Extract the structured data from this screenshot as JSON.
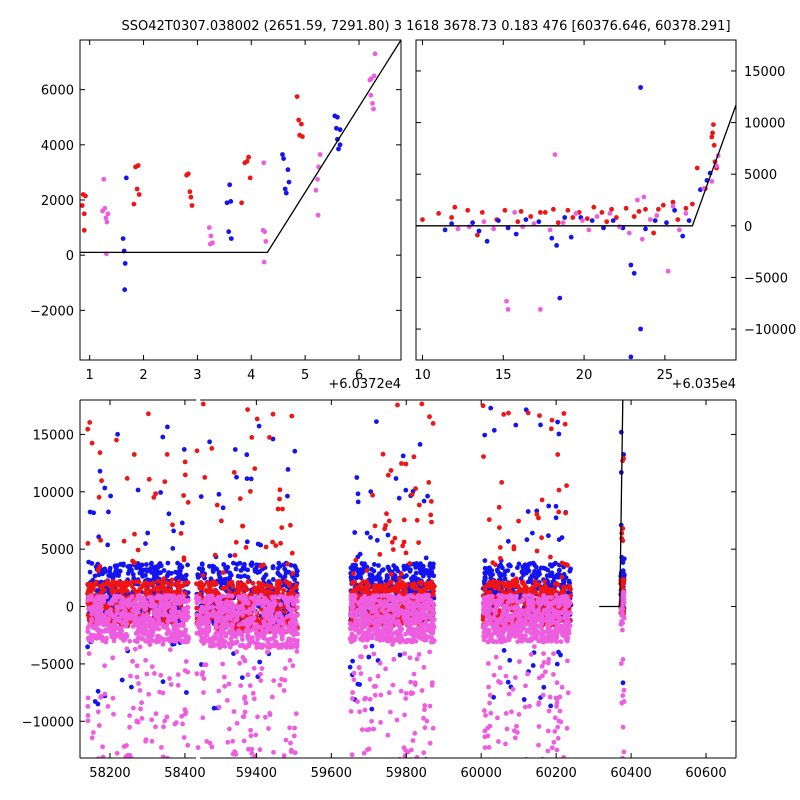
{
  "title": "SSO42T0307.038002 (2651.59, 7291.80)    3 1618 3678.73 0.183 476 [60376.646, 60378.291]",
  "colors": {
    "blue": "#1414f0",
    "red": "#f01414",
    "magenta": "#ee5ce0",
    "model": "#000000"
  },
  "chart_data": [
    {
      "id": "top-left",
      "type": "scatter",
      "x_offset_label": "+6.0372e4",
      "xlim": [
        0.82,
        6.78
      ],
      "ylim": [
        -3800,
        7800
      ],
      "xticks": [
        1,
        2,
        3,
        4,
        5,
        6
      ],
      "xtick_labels": [
        "1",
        "2",
        "3",
        "4",
        "5",
        "6"
      ],
      "yticks": [
        -2000,
        0,
        2000,
        4000,
        6000
      ],
      "ytick_labels": [
        "−2000",
        "0",
        "2000",
        "4000",
        "6000"
      ],
      "y_axis_side": "left",
      "model_line": [
        [
          0.82,
          100
        ],
        [
          4.3,
          100
        ],
        [
          6.78,
          7800
        ]
      ],
      "series": [
        {
          "color": "red",
          "points": [
            [
              0.86,
              1800
            ],
            [
              0.88,
              2200
            ],
            [
              0.9,
              1500
            ],
            [
              0.92,
              2150
            ],
            [
              0.9,
              900
            ],
            [
              1.82,
              1850
            ],
            [
              1.85,
              3200
            ],
            [
              1.88,
              2400
            ],
            [
              1.9,
              3250
            ],
            [
              1.92,
              2200
            ],
            [
              2.8,
              2900
            ],
            [
              2.83,
              2950
            ],
            [
              2.86,
              2300
            ],
            [
              2.88,
              2100
            ],
            [
              2.9,
              1800
            ],
            [
              3.82,
              1900
            ],
            [
              3.88,
              3350
            ],
            [
              3.92,
              3400
            ],
            [
              3.95,
              3550
            ],
            [
              3.98,
              2800
            ],
            [
              4.85,
              5750
            ],
            [
              4.88,
              4900
            ],
            [
              4.9,
              4350
            ],
            [
              4.93,
              4750
            ],
            [
              4.95,
              4300
            ]
          ]
        },
        {
          "color": "blue",
          "points": [
            [
              1.62,
              600
            ],
            [
              1.64,
              150
            ],
            [
              1.66,
              -300
            ],
            [
              1.65,
              -1250
            ],
            [
              1.68,
              2800
            ],
            [
              3.55,
              1900
            ],
            [
              3.6,
              2550
            ],
            [
              3.62,
              1950
            ],
            [
              3.58,
              850
            ],
            [
              3.63,
              600
            ],
            [
              4.58,
              3650
            ],
            [
              4.6,
              3500
            ],
            [
              4.63,
              2400
            ],
            [
              4.65,
              2250
            ],
            [
              4.68,
              3100
            ],
            [
              4.7,
              2650
            ],
            [
              5.55,
              5050
            ],
            [
              5.58,
              4600
            ],
            [
              5.6,
              4200
            ],
            [
              5.62,
              3850
            ],
            [
              5.65,
              4550
            ],
            [
              5.6,
              5000
            ],
            [
              5.65,
              4000
            ]
          ]
        },
        {
          "color": "magenta",
          "points": [
            [
              1.24,
              1600
            ],
            [
              1.26,
              2750
            ],
            [
              1.28,
              1700
            ],
            [
              1.3,
              1350
            ],
            [
              1.32,
              1200
            ],
            [
              1.34,
              1500
            ],
            [
              1.31,
              50
            ],
            [
              3.22,
              1000
            ],
            [
              3.25,
              700
            ],
            [
              3.28,
              450
            ],
            [
              3.24,
              400
            ],
            [
              4.22,
              900
            ],
            [
              4.25,
              850
            ],
            [
              4.27,
              500
            ],
            [
              4.24,
              -250
            ],
            [
              4.23,
              3350
            ],
            [
              5.2,
              2350
            ],
            [
              5.23,
              2750
            ],
            [
              5.25,
              3200
            ],
            [
              5.28,
              3650
            ],
            [
              5.24,
              1450
            ],
            [
              6.2,
              6350
            ],
            [
              6.23,
              6400
            ],
            [
              6.25,
              5500
            ],
            [
              6.27,
              5300
            ],
            [
              6.3,
              7300
            ],
            [
              6.28,
              6500
            ],
            [
              6.22,
              5800
            ]
          ]
        }
      ]
    },
    {
      "id": "top-right",
      "type": "scatter",
      "x_offset_label": "+6.035e4",
      "xlim": [
        9.6,
        29.4
      ],
      "ylim": [
        -13000,
        18000
      ],
      "xticks": [
        10,
        15,
        20,
        25
      ],
      "xtick_labels": [
        "10",
        "15",
        "20",
        "25"
      ],
      "yticks": [
        -10000,
        -5000,
        0,
        5000,
        10000,
        15000
      ],
      "ytick_labels": [
        "−10000",
        "−5000",
        "0",
        "5000",
        "10000",
        "15000"
      ],
      "y_axis_side": "right",
      "model_line": [
        [
          9.6,
          0
        ],
        [
          26.7,
          0
        ],
        [
          29.4,
          11700
        ]
      ],
      "series": [
        {
          "color": "red",
          "points": [
            [
              10.0,
              600
            ],
            [
              11.0,
              1200
            ],
            [
              11.8,
              800
            ],
            [
              12.0,
              1800
            ],
            [
              12.8,
              1500
            ],
            [
              13.4,
              -900
            ],
            [
              13.7,
              1300
            ],
            [
              14.6,
              600
            ],
            [
              15.1,
              1500
            ],
            [
              15.9,
              400
            ],
            [
              16.1,
              1400
            ],
            [
              16.7,
              900
            ],
            [
              17.3,
              1300
            ],
            [
              17.6,
              1300
            ],
            [
              18.1,
              1600
            ],
            [
              18.4,
              300
            ],
            [
              19.0,
              1500
            ],
            [
              19.3,
              800
            ],
            [
              19.7,
              1300
            ],
            [
              20.2,
              700
            ],
            [
              20.6,
              1800
            ],
            [
              21.1,
              1300
            ],
            [
              21.4,
              400
            ],
            [
              21.7,
              1600
            ],
            [
              22.0,
              800
            ],
            [
              22.6,
              1700
            ],
            [
              23.1,
              900
            ],
            [
              23.4,
              1400
            ],
            [
              23.8,
              1600
            ],
            [
              24.3,
              -700
            ],
            [
              24.6,
              1600
            ],
            [
              24.9,
              2000
            ],
            [
              25.5,
              2300
            ],
            [
              25.8,
              600
            ],
            [
              26.3,
              1700
            ],
            [
              26.7,
              2100
            ],
            [
              27.0,
              5600
            ],
            [
              27.5,
              3600
            ],
            [
              27.9,
              8600
            ],
            [
              27.95,
              9000
            ],
            [
              28.0,
              9800
            ],
            [
              28.05,
              7800
            ],
            [
              28.1,
              6200
            ],
            [
              28.2,
              5600
            ]
          ]
        },
        {
          "color": "blue",
          "points": [
            [
              11.4,
              -400
            ],
            [
              11.8,
              200
            ],
            [
              13.1,
              300
            ],
            [
              13.5,
              -500
            ],
            [
              14.0,
              -1500
            ],
            [
              14.7,
              500
            ],
            [
              15.3,
              -200
            ],
            [
              15.8,
              -800
            ],
            [
              16.4,
              600
            ],
            [
              17.2,
              400
            ],
            [
              18.0,
              -1200
            ],
            [
              18.3,
              -1900
            ],
            [
              18.5,
              -7000
            ],
            [
              18.8,
              800
            ],
            [
              19.2,
              -1100
            ],
            [
              19.8,
              800
            ],
            [
              20.5,
              500
            ],
            [
              21.2,
              -200
            ],
            [
              21.8,
              500
            ],
            [
              22.4,
              -200
            ],
            [
              22.9,
              -3800
            ],
            [
              22.9,
              -12700
            ],
            [
              23.1,
              -4600
            ],
            [
              23.5,
              13400
            ],
            [
              23.5,
              -10000
            ],
            [
              23.8,
              -300
            ],
            [
              24.4,
              500
            ],
            [
              25.1,
              300
            ],
            [
              25.6,
              1500
            ],
            [
              26.1,
              -1000
            ],
            [
              26.5,
              500
            ],
            [
              27.2,
              3500
            ],
            [
              27.6,
              4400
            ],
            [
              27.8,
              5100
            ]
          ]
        },
        {
          "color": "magenta",
          "points": [
            [
              12.2,
              -300
            ],
            [
              12.9,
              -100
            ],
            [
              13.8,
              400
            ],
            [
              14.4,
              -300
            ],
            [
              15.2,
              -7300
            ],
            [
              15.3,
              -8100
            ],
            [
              15.7,
              1300
            ],
            [
              16.2,
              -100
            ],
            [
              16.9,
              200
            ],
            [
              17.3,
              -8100
            ],
            [
              17.9,
              -400
            ],
            [
              18.2,
              6900
            ],
            [
              18.7,
              300
            ],
            [
              19.5,
              1200
            ],
            [
              19.9,
              500
            ],
            [
              20.3,
              -400
            ],
            [
              20.8,
              900
            ],
            [
              21.6,
              1200
            ],
            [
              22.2,
              -100
            ],
            [
              22.8,
              -700
            ],
            [
              23.3,
              2500
            ],
            [
              23.6,
              -1300
            ],
            [
              23.7,
              2800
            ],
            [
              24.1,
              600
            ],
            [
              24.5,
              1000
            ],
            [
              25.2,
              -4400
            ],
            [
              25.5,
              1900
            ],
            [
              25.9,
              -400
            ],
            [
              26.3,
              1200
            ],
            [
              27.4,
              3600
            ],
            [
              27.9,
              4300
            ],
            [
              28.2,
              5800
            ],
            [
              28.3,
              6800
            ]
          ]
        }
      ]
    },
    {
      "id": "bottom",
      "type": "scatter",
      "xlim": [
        58120,
        60680
      ],
      "ylim": [
        -13200,
        18000
      ],
      "xticks": [
        58200,
        58400,
        59400,
        59600,
        59800,
        60000,
        60200,
        60400,
        60600
      ],
      "xtick_labels": [
        "58200",
        "58400",
        "59400",
        "59600",
        "59800",
        "60000",
        "60200",
        "60400",
        "60600"
      ],
      "yticks": [
        -10000,
        -5000,
        0,
        5000,
        10000,
        15000
      ],
      "ytick_labels": [
        "−10000",
        "−5000",
        "0",
        "5000",
        "10000",
        "15000"
      ],
      "y_axis_side": "left",
      "x_break_after": 58430,
      "x_break_resume": 59250,
      "model_line": [
        [
          60315,
          0
        ],
        [
          60370,
          0
        ],
        [
          60378,
          18000
        ]
      ],
      "seasons": [
        {
          "x_range": [
            58140,
            58410
          ],
          "core": [
            -2500,
            1200
          ]
        },
        {
          "x_range": [
            59240,
            59510
          ],
          "core": [
            -3000,
            1200
          ]
        },
        {
          "x_range": [
            59650,
            59875
          ],
          "core": [
            -2500,
            1200
          ]
        },
        {
          "x_range": [
            60005,
            60240
          ],
          "core": [
            -2500,
            1200
          ]
        },
        {
          "x_range": [
            60372,
            60382
          ],
          "core": [
            -1500,
            1500
          ]
        }
      ]
    }
  ]
}
